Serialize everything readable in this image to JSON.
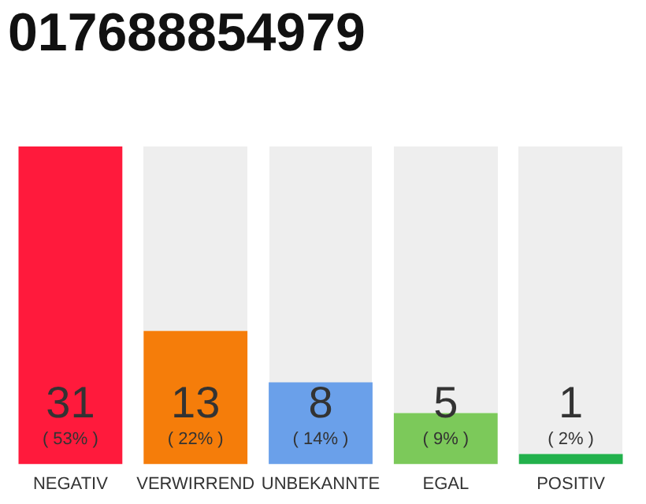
{
  "chart_data": {
    "type": "bar",
    "title": "017688854979",
    "categories": [
      "NEGATIV",
      "VERWIRREND",
      "UNBEKANNTE",
      "EGAL",
      "POSITIV"
    ],
    "values": [
      31,
      13,
      8,
      5,
      1
    ],
    "colors": [
      "#ff1a3c",
      "#f57d0a",
      "#6aa0ea",
      "#7cc95a",
      "#22b14c"
    ],
    "ylim": [
      0,
      31
    ],
    "tick_labels": "x",
    "grid": false,
    "legend": false,
    "data_labels": true,
    "annotations": [
      "( 53% )",
      "( 22% )",
      "( 14% )",
      "( 9% )",
      "( 2% )"
    ]
  }
}
